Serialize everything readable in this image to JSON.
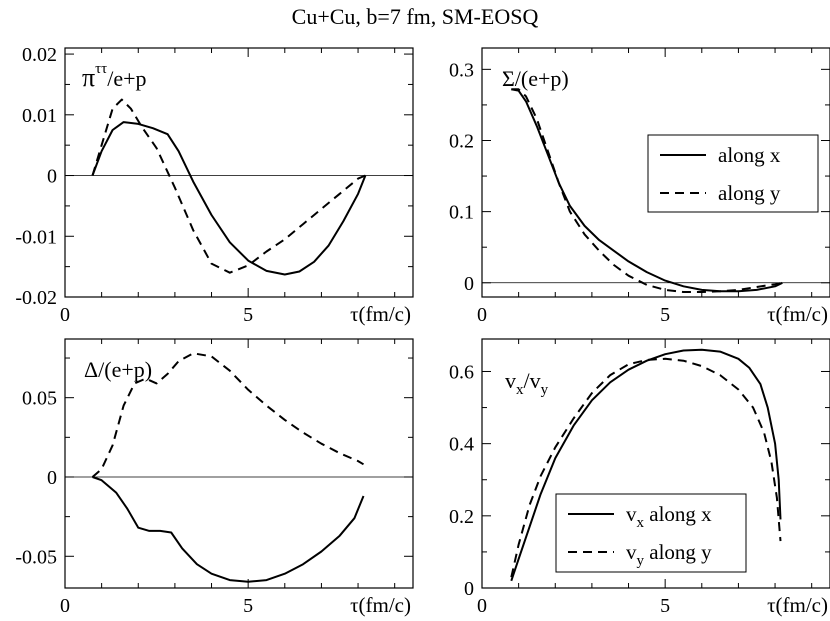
{
  "figure_title": "Cu+Cu, b=7 fm, SM-EOSQ",
  "chart_data": [
    {
      "type": "line",
      "title": "",
      "ylabel": "π^{ττ}/e+p",
      "ylabel_main": "π",
      "ylabel_sup": "ττ",
      "ylabel_rest": "/e+p",
      "xlabel": "τ(fm/c)",
      "xlim": [
        0,
        9.5
      ],
      "ylim": [
        -0.02,
        0.021
      ],
      "xticks": [
        0,
        5
      ],
      "xtick_labels": [
        "0",
        "5"
      ],
      "yticks": [
        -0.02,
        -0.01,
        0,
        0.01,
        0.02
      ],
      "ytick_labels": [
        "-0.02",
        "-0.01",
        "0",
        "0.01",
        "0.02"
      ],
      "zero_line": true,
      "series": [
        {
          "name": "along x",
          "style": "solid",
          "x": [
            0.75,
            1.0,
            1.3,
            1.6,
            2.0,
            2.4,
            2.8,
            3.1,
            3.5,
            4.0,
            4.5,
            5.0,
            5.5,
            6.0,
            6.4,
            6.8,
            7.2,
            7.6,
            8.0,
            8.2
          ],
          "y": [
            0.0,
            0.004,
            0.0075,
            0.0088,
            0.0085,
            0.0078,
            0.0068,
            0.004,
            -0.001,
            -0.0065,
            -0.011,
            -0.014,
            -0.0157,
            -0.0163,
            -0.0158,
            -0.0142,
            -0.0115,
            -0.0075,
            -0.003,
            0.0
          ]
        },
        {
          "name": "along y",
          "style": "dashed",
          "x": [
            0.75,
            1.0,
            1.3,
            1.55,
            1.8,
            2.1,
            2.5,
            3.0,
            3.5,
            4.0,
            4.5,
            5.0,
            5.5,
            6.0,
            6.5,
            7.0,
            7.5,
            8.0,
            8.2
          ],
          "y": [
            0.0,
            0.005,
            0.011,
            0.0125,
            0.011,
            0.008,
            0.0045,
            -0.002,
            -0.009,
            -0.0145,
            -0.016,
            -0.0148,
            -0.0125,
            -0.0105,
            -0.008,
            -0.0055,
            -0.003,
            -0.0005,
            0.0
          ]
        }
      ]
    },
    {
      "type": "line",
      "title": "",
      "ylabel": "Σ/(e+p)",
      "xlabel": "τ(fm/c)",
      "xlim": [
        0,
        9.5
      ],
      "ylim": [
        -0.02,
        0.33
      ],
      "xticks": [
        0,
        5
      ],
      "xtick_labels": [
        "0",
        "5"
      ],
      "yticks": [
        0,
        0.1,
        0.2,
        0.3
      ],
      "ytick_labels": [
        "0",
        "0.1",
        "0.2",
        "0.3"
      ],
      "zero_line": true,
      "legend": {
        "position": "top-right",
        "entries": [
          {
            "label": "along x",
            "style": "solid"
          },
          {
            "label": "along y",
            "style": "dashed"
          }
        ]
      },
      "series": [
        {
          "name": "along x",
          "style": "solid",
          "x": [
            0.8,
            1.0,
            1.2,
            1.5,
            1.8,
            2.1,
            2.4,
            2.8,
            3.2,
            3.6,
            4.0,
            4.5,
            5.0,
            5.5,
            6.0,
            6.5,
            7.0,
            7.5,
            8.0,
            8.2
          ],
          "y": [
            0.272,
            0.27,
            0.255,
            0.22,
            0.18,
            0.14,
            0.108,
            0.08,
            0.06,
            0.045,
            0.03,
            0.015,
            0.003,
            -0.005,
            -0.01,
            -0.012,
            -0.012,
            -0.01,
            -0.005,
            0.0
          ]
        },
        {
          "name": "along y",
          "style": "dashed",
          "x": [
            0.8,
            1.0,
            1.2,
            1.5,
            1.8,
            2.1,
            2.4,
            2.8,
            3.2,
            3.6,
            4.0,
            4.5,
            5.0,
            5.5,
            6.0,
            6.5,
            7.0,
            7.5,
            8.0,
            8.2
          ],
          "y": [
            0.272,
            0.272,
            0.262,
            0.23,
            0.185,
            0.14,
            0.1,
            0.068,
            0.045,
            0.025,
            0.01,
            -0.003,
            -0.01,
            -0.013,
            -0.013,
            -0.012,
            -0.01,
            -0.006,
            -0.002,
            0.0
          ]
        }
      ]
    },
    {
      "type": "line",
      "title": "",
      "ylabel": "Δ/(e+p)",
      "xlabel": "τ(fm/c)",
      "xlim": [
        0,
        9.5
      ],
      "ylim": [
        -0.07,
        0.087
      ],
      "xticks": [
        0,
        5
      ],
      "xtick_labels": [
        "0",
        "5"
      ],
      "yticks": [
        -0.05,
        0,
        0.05
      ],
      "ytick_labels": [
        "-0.05",
        "0",
        "0.05"
      ],
      "zero_line": true,
      "series": [
        {
          "name": "along x",
          "style": "solid",
          "x": [
            0.75,
            1.0,
            1.4,
            1.7,
            2.0,
            2.3,
            2.6,
            2.9,
            3.2,
            3.6,
            4.0,
            4.5,
            5.0,
            5.5,
            6.0,
            6.5,
            7.0,
            7.5,
            7.9,
            8.15
          ],
          "y": [
            0.0,
            -0.002,
            -0.01,
            -0.02,
            -0.032,
            -0.034,
            -0.034,
            -0.035,
            -0.045,
            -0.055,
            -0.061,
            -0.065,
            -0.066,
            -0.065,
            -0.061,
            -0.055,
            -0.047,
            -0.037,
            -0.026,
            -0.012
          ]
        },
        {
          "name": "along y",
          "style": "dashed",
          "x": [
            0.75,
            1.0,
            1.3,
            1.6,
            1.9,
            2.2,
            2.5,
            2.8,
            3.1,
            3.5,
            4.0,
            4.5,
            5.0,
            5.5,
            6.0,
            6.5,
            7.0,
            7.5,
            8.0,
            8.15
          ],
          "y": [
            0.0,
            0.005,
            0.02,
            0.045,
            0.059,
            0.062,
            0.059,
            0.065,
            0.073,
            0.078,
            0.076,
            0.067,
            0.055,
            0.045,
            0.036,
            0.028,
            0.021,
            0.015,
            0.01,
            0.008
          ]
        }
      ]
    },
    {
      "type": "line",
      "title": "",
      "ylabel": "v_x/v_y",
      "ylabel_sub1": "x",
      "ylabel_sub2": "y",
      "xlabel": "τ(fm/c)",
      "xlim": [
        0,
        9.5
      ],
      "ylim": [
        0,
        0.69
      ],
      "xticks": [
        0,
        5
      ],
      "xtick_labels": [
        "0",
        "5"
      ],
      "yticks": [
        0,
        0.2,
        0.4,
        0.6
      ],
      "ytick_labels": [
        "0",
        "0.2",
        "0.4",
        "0.6"
      ],
      "zero_line": false,
      "legend": {
        "position": "bottom-center",
        "entries": [
          {
            "label": "v_x along x",
            "label_main": "v",
            "label_sub": "x",
            "label_rest": " along x",
            "style": "solid"
          },
          {
            "label": "v_y along y",
            "label_main": "v",
            "label_sub": "y",
            "label_rest": " along y",
            "style": "dashed"
          }
        ]
      },
      "series": [
        {
          "name": "v_x along x",
          "style": "solid",
          "x": [
            0.8,
            1.0,
            1.3,
            1.6,
            2.0,
            2.5,
            3.0,
            3.5,
            4.0,
            4.5,
            5.0,
            5.5,
            6.0,
            6.5,
            7.0,
            7.3,
            7.6,
            7.8,
            8.0,
            8.1,
            8.15
          ],
          "y": [
            0.02,
            0.08,
            0.17,
            0.26,
            0.36,
            0.45,
            0.52,
            0.57,
            0.605,
            0.63,
            0.648,
            0.658,
            0.66,
            0.655,
            0.635,
            0.61,
            0.565,
            0.5,
            0.4,
            0.3,
            0.19
          ]
        },
        {
          "name": "v_y along y",
          "style": "dashed",
          "x": [
            0.8,
            1.0,
            1.3,
            1.6,
            2.0,
            2.5,
            3.0,
            3.5,
            4.0,
            4.5,
            5.0,
            5.5,
            6.0,
            6.5,
            7.0,
            7.4,
            7.7,
            7.9,
            8.05,
            8.15
          ],
          "y": [
            0.03,
            0.12,
            0.23,
            0.31,
            0.39,
            0.47,
            0.54,
            0.59,
            0.62,
            0.632,
            0.635,
            0.63,
            0.615,
            0.59,
            0.55,
            0.5,
            0.43,
            0.35,
            0.25,
            0.13
          ]
        }
      ]
    }
  ]
}
